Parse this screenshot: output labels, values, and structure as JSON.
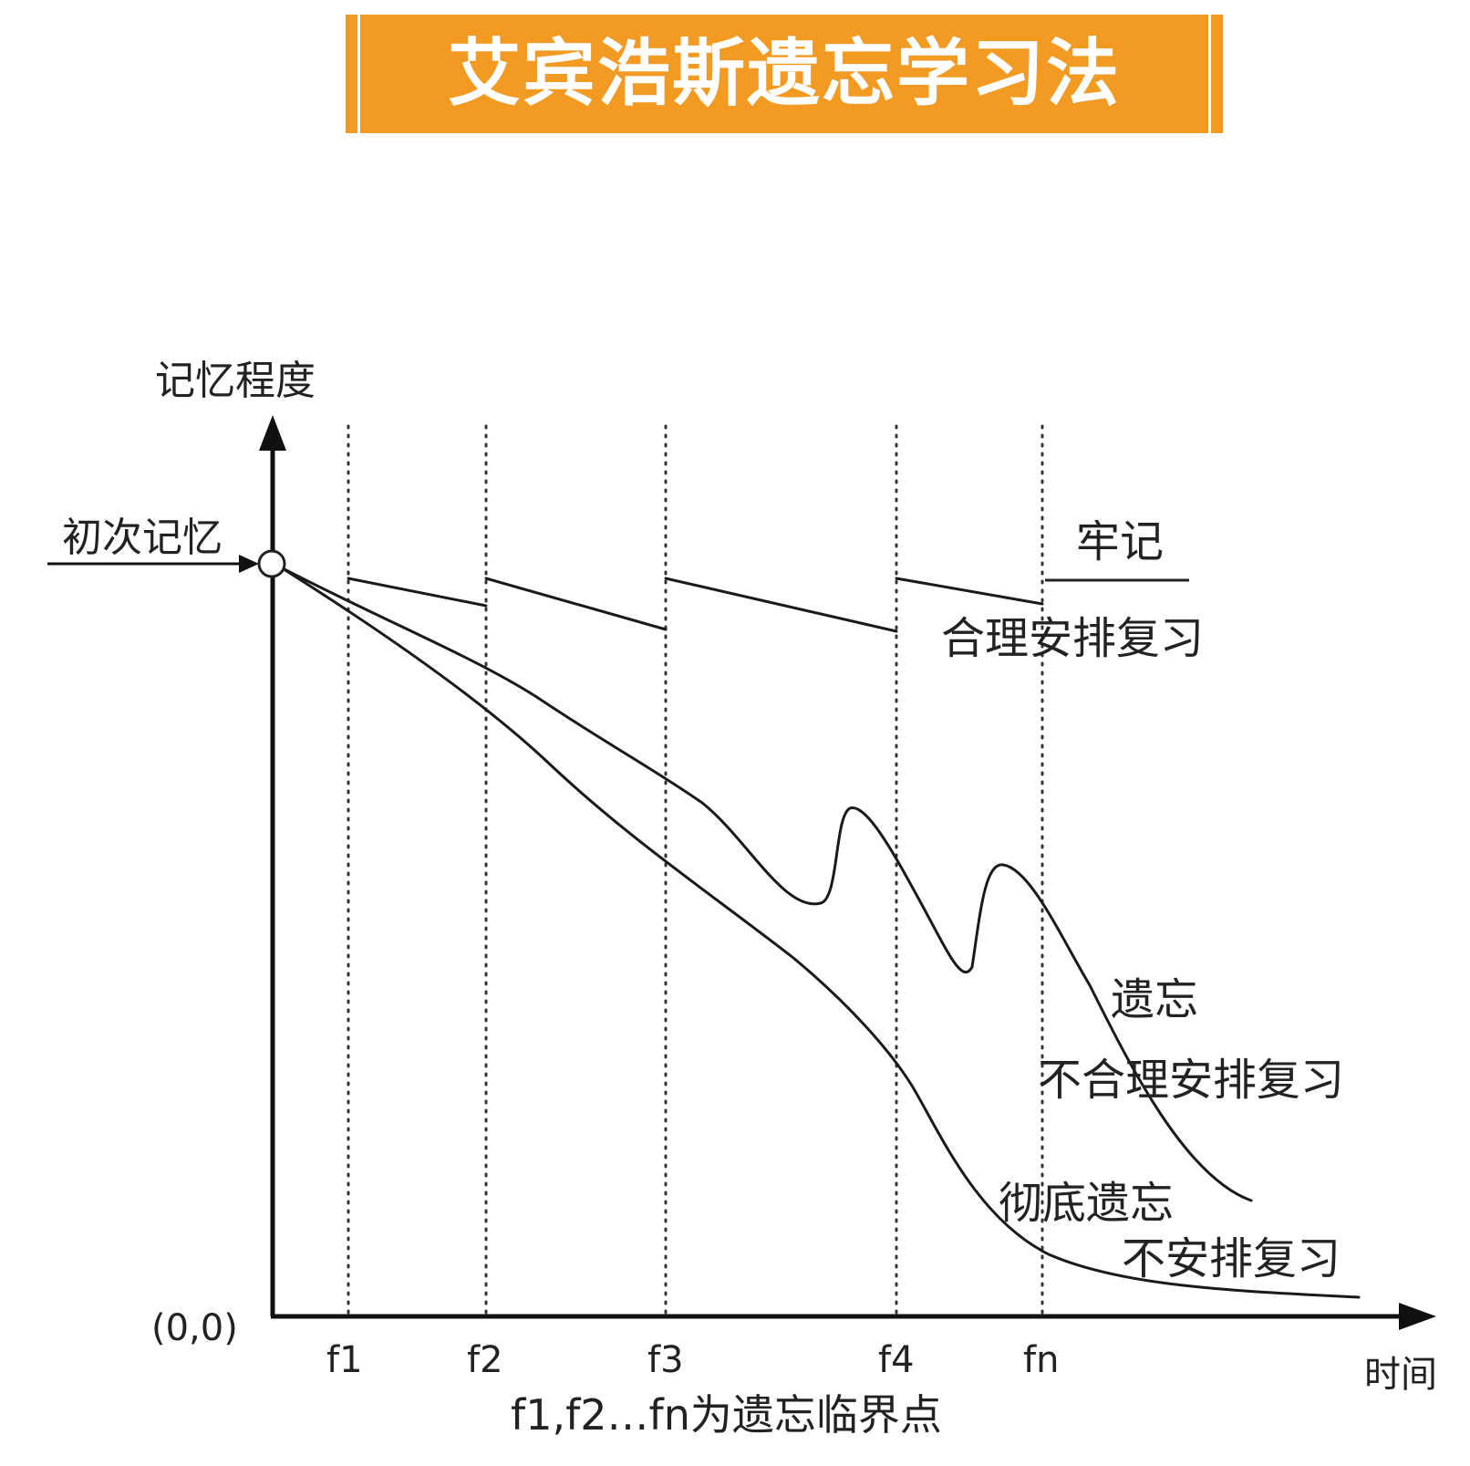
{
  "banner": {
    "title": "艾宾浩斯遗忘学习法",
    "color": "#f29a21"
  },
  "axes": {
    "y_label": "记忆程度",
    "x_label": "时间",
    "origin": "(0,0)",
    "initial_memory": "初次记忆"
  },
  "ticks": [
    "f1",
    "f2",
    "f3",
    "f4",
    "fn"
  ],
  "caption": "f1,f2…fn为遗忘临界点",
  "labels": {
    "firm": "牢记",
    "review_good": "合理安排复习",
    "forget": "遗忘",
    "review_bad": "不合理安排复习",
    "forget_total": "彻底遗忘",
    "review_none": "不安排复习"
  }
}
